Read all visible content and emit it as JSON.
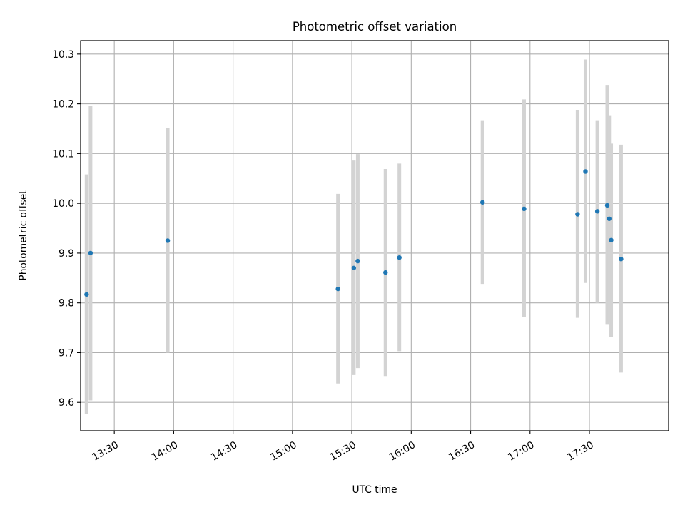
{
  "chart_data": {
    "type": "scatter",
    "title": "Photometric offset variation",
    "xlabel": "UTC time",
    "ylabel": "Photometric offset",
    "grid": true,
    "xlim": [
      "13:13",
      "18:10"
    ],
    "ylim": [
      9.543,
      10.327
    ],
    "x_ticks": [
      "13:30",
      "14:00",
      "14:30",
      "15:00",
      "15:30",
      "16:00",
      "16:30",
      "17:00",
      "17:30"
    ],
    "y_ticks": [
      "9.6",
      "9.7",
      "9.8",
      "9.9",
      "10.0",
      "10.1",
      "10.2",
      "10.3"
    ],
    "colors": {
      "point": "#1f77b4",
      "errorbar": "#d3d3d3",
      "grid": "#b0b0b0"
    },
    "points": [
      {
        "x": "13:16",
        "y": 9.817,
        "low": 9.577,
        "high": 10.058
      },
      {
        "x": "13:18",
        "y": 9.9,
        "low": 9.604,
        "high": 10.196
      },
      {
        "x": "13:57",
        "y": 9.925,
        "low": 9.7,
        "high": 10.151
      },
      {
        "x": "15:23",
        "y": 9.828,
        "low": 9.638,
        "high": 10.019
      },
      {
        "x": "15:31",
        "y": 9.87,
        "low": 9.655,
        "high": 10.086
      },
      {
        "x": "15:33",
        "y": 9.884,
        "low": 9.669,
        "high": 10.099
      },
      {
        "x": "15:47",
        "y": 9.861,
        "low": 9.653,
        "high": 10.069
      },
      {
        "x": "15:54",
        "y": 9.891,
        "low": 9.703,
        "high": 10.08
      },
      {
        "x": "16:36",
        "y": 10.002,
        "low": 9.838,
        "high": 10.167
      },
      {
        "x": "16:57",
        "y": 9.989,
        "low": 9.772,
        "high": 10.209
      },
      {
        "x": "17:24",
        "y": 9.978,
        "low": 9.77,
        "high": 10.188
      },
      {
        "x": "17:28",
        "y": 10.064,
        "low": 9.84,
        "high": 10.289
      },
      {
        "x": "17:34",
        "y": 9.984,
        "low": 9.8,
        "high": 10.167
      },
      {
        "x": "17:39",
        "y": 9.996,
        "low": 9.756,
        "high": 10.238
      },
      {
        "x": "17:40",
        "y": 9.969,
        "low": 9.76,
        "high": 10.177
      },
      {
        "x": "17:41",
        "y": 9.926,
        "low": 9.732,
        "high": 10.12
      },
      {
        "x": "17:46",
        "y": 9.888,
        "low": 9.66,
        "high": 10.118
      }
    ]
  }
}
